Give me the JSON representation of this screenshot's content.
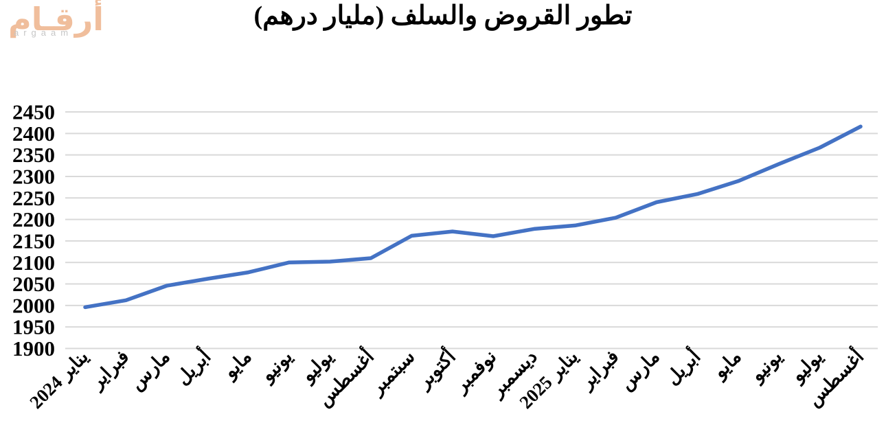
{
  "logo": {
    "arabic": "أرقـام",
    "latin": "argaam",
    "arabic_color": "#F0BE9C",
    "latin_color": "#C6C6C6"
  },
  "title": "تطور القروض والسلف (مليار درهم)",
  "chart_data": {
    "type": "line",
    "title": "تطور القروض والسلف (مليار درهم)",
    "categories": [
      "يناير 2024",
      "فبراير",
      "مارس",
      "أبريل",
      "مايو",
      "يونيو",
      "يوليو",
      "أغسطس",
      "سبتمبر",
      "أكتوبر",
      "نوفمبر",
      "ديسمبر",
      "يناير 2025",
      "فبراير",
      "مارس",
      "أبريل",
      "مايو",
      "يونيو",
      "يوليو",
      "أغسطس"
    ],
    "values": [
      1996,
      2012,
      2046,
      2062,
      2077,
      2100,
      2102,
      2110,
      2162,
      2172,
      2161,
      2178,
      2186,
      2204,
      2240,
      2259,
      2289,
      2329,
      2367,
      2416
    ],
    "xlabel": "",
    "ylabel": "",
    "ylim": [
      1900,
      2450
    ],
    "ytick_step": 50,
    "grid": true,
    "legend": false,
    "line_color": "#4472C4",
    "gridline_color": "#D9D9D9",
    "label_color": "#000000",
    "background_color": "#FFFFFF"
  }
}
